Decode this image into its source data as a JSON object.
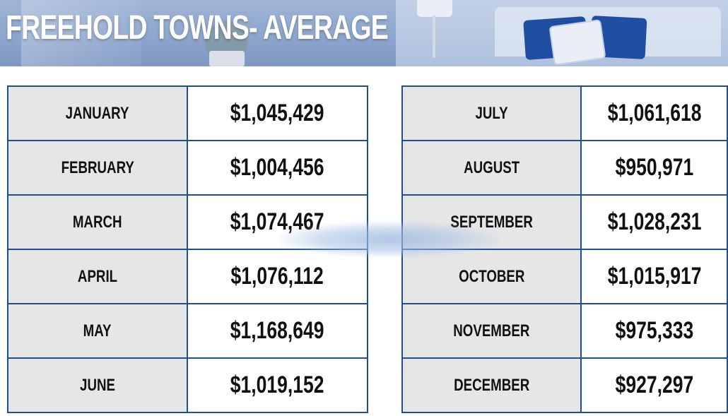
{
  "title": "FREEHOLD TOWNS- AVERAGE",
  "colors": {
    "border": "#1f4f91",
    "month_cell_bg": "#e6e6e6",
    "highlight_value": "#e04a2c",
    "title_text": "#ffffff"
  },
  "left_rows": [
    {
      "month": "JANUARY",
      "value": "$1,045,429"
    },
    {
      "month": "FEBRUARY",
      "value": "$1,004,456"
    },
    {
      "month": "MARCH",
      "value": "$1,074,467"
    },
    {
      "month": "APRIL",
      "value": "$1,076,112"
    },
    {
      "month": "MAY",
      "value": "$1,168,649"
    },
    {
      "month": "JUNE",
      "value": "$1,019,152"
    }
  ],
  "right_rows": [
    {
      "month": "JULY",
      "value": "$1,061,618"
    },
    {
      "month": "AUGUST",
      "value": "$950,971"
    },
    {
      "month": "SEPTEMBER",
      "value": "$1,028,231"
    },
    {
      "month": "OCTOBER",
      "value": "$1,015,917"
    },
    {
      "month": "NOVEMBER",
      "value": "$975,333"
    },
    {
      "month": "DECEMBER",
      "value": "$927,297",
      "highlight": true
    }
  ]
}
